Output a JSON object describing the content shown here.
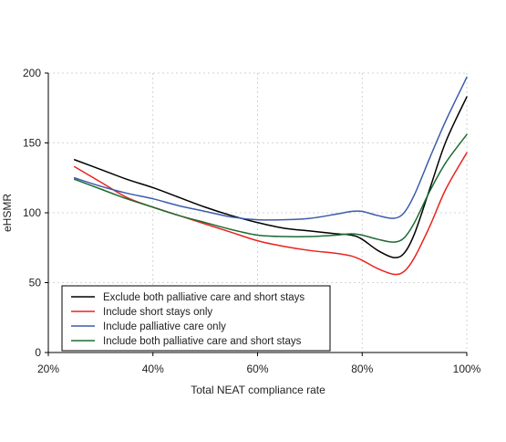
{
  "chart_data": {
    "type": "line",
    "xlabel": "Total NEAT compliance rate",
    "ylabel": "eHSMR",
    "xlim": [
      20,
      100
    ],
    "ylim": [
      0,
      200
    ],
    "xticks": [
      20,
      40,
      60,
      80,
      100
    ],
    "xtick_labels": [
      "20%",
      "40%",
      "60%",
      "80%",
      "100%"
    ],
    "yticks": [
      0,
      50,
      100,
      150,
      200
    ],
    "ytick_labels": [
      "0",
      "50",
      "100",
      "150",
      "200"
    ],
    "grid": true,
    "legend_position": "bottom-left",
    "series": [
      {
        "name": "Exclude both palliative care and short stays",
        "color": "#000000",
        "x": [
          25,
          30,
          35,
          40,
          45,
          50,
          55,
          60,
          65,
          70,
          75,
          78,
          80,
          83,
          86,
          88,
          90,
          93,
          96,
          100
        ],
        "y": [
          138,
          131,
          124,
          118,
          111,
          104,
          98,
          93,
          89,
          87,
          85,
          84,
          81,
          73,
          68,
          71,
          85,
          118,
          151,
          183
        ]
      },
      {
        "name": "Include short stays only",
        "color": "#e8231f",
        "x": [
          25,
          30,
          35,
          40,
          45,
          50,
          55,
          60,
          65,
          70,
          75,
          78,
          80,
          83,
          86,
          88,
          90,
          93,
          96,
          100
        ],
        "y": [
          133,
          122,
          111,
          104,
          98,
          92,
          86,
          80,
          76,
          73,
          71,
          69,
          66,
          60,
          56,
          58,
          68,
          91,
          117,
          143
        ]
      },
      {
        "name": "Include palliative care only",
        "color": "#3b5cab",
        "x": [
          25,
          30,
          35,
          40,
          45,
          50,
          55,
          60,
          65,
          70,
          75,
          78,
          80,
          83,
          86,
          88,
          90,
          93,
          96,
          100
        ],
        "y": [
          125,
          119,
          114,
          110,
          105,
          101,
          97,
          95,
          95,
          96,
          99,
          101,
          101,
          98,
          96,
          100,
          113,
          140,
          166,
          197
        ]
      },
      {
        "name": "Include both palliative care and short stays",
        "color": "#1e6b33",
        "x": [
          25,
          30,
          35,
          40,
          45,
          50,
          55,
          60,
          65,
          70,
          75,
          78,
          80,
          83,
          86,
          88,
          90,
          93,
          96,
          100
        ],
        "y": [
          124,
          117,
          110,
          104,
          98,
          93,
          88,
          84,
          83,
          83,
          84,
          85,
          84,
          81,
          79,
          82,
          93,
          116,
          136,
          156
        ]
      }
    ]
  }
}
